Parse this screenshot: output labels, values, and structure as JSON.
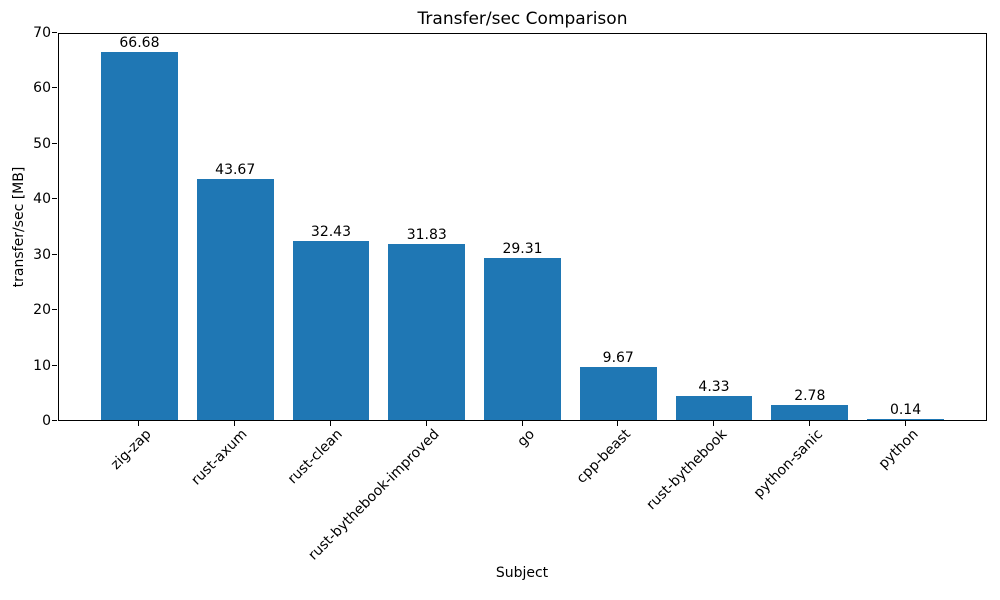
{
  "chart_data": {
    "type": "bar",
    "title": "Transfer/sec Comparison",
    "xlabel": "Subject",
    "ylabel": "transfer/sec [MB]",
    "categories": [
      "zig-zap",
      "rust-axum",
      "rust-clean",
      "rust-bythebook-improved",
      "go",
      "cpp-beast",
      "rust-bythebook",
      "python-sanic",
      "python"
    ],
    "values": [
      66.68,
      43.67,
      32.43,
      31.83,
      29.31,
      9.67,
      4.33,
      2.78,
      0.14
    ],
    "value_labels": [
      "66.68",
      "43.67",
      "32.43",
      "31.83",
      "29.31",
      "9.67",
      "4.33",
      "2.78",
      "0.14"
    ],
    "ylim": [
      0,
      70
    ],
    "yticks": [
      0,
      10,
      20,
      30,
      40,
      50,
      60,
      70
    ],
    "ytick_labels": [
      "0",
      "10",
      "20",
      "30",
      "40",
      "50",
      "60",
      "70"
    ],
    "bar_color": "#1f77b4",
    "background_color": "#ffffff",
    "spine_color": "#000000",
    "grid": false,
    "legend": null,
    "bar_width_fraction": 0.8,
    "x_margin_fraction": 0.05
  }
}
